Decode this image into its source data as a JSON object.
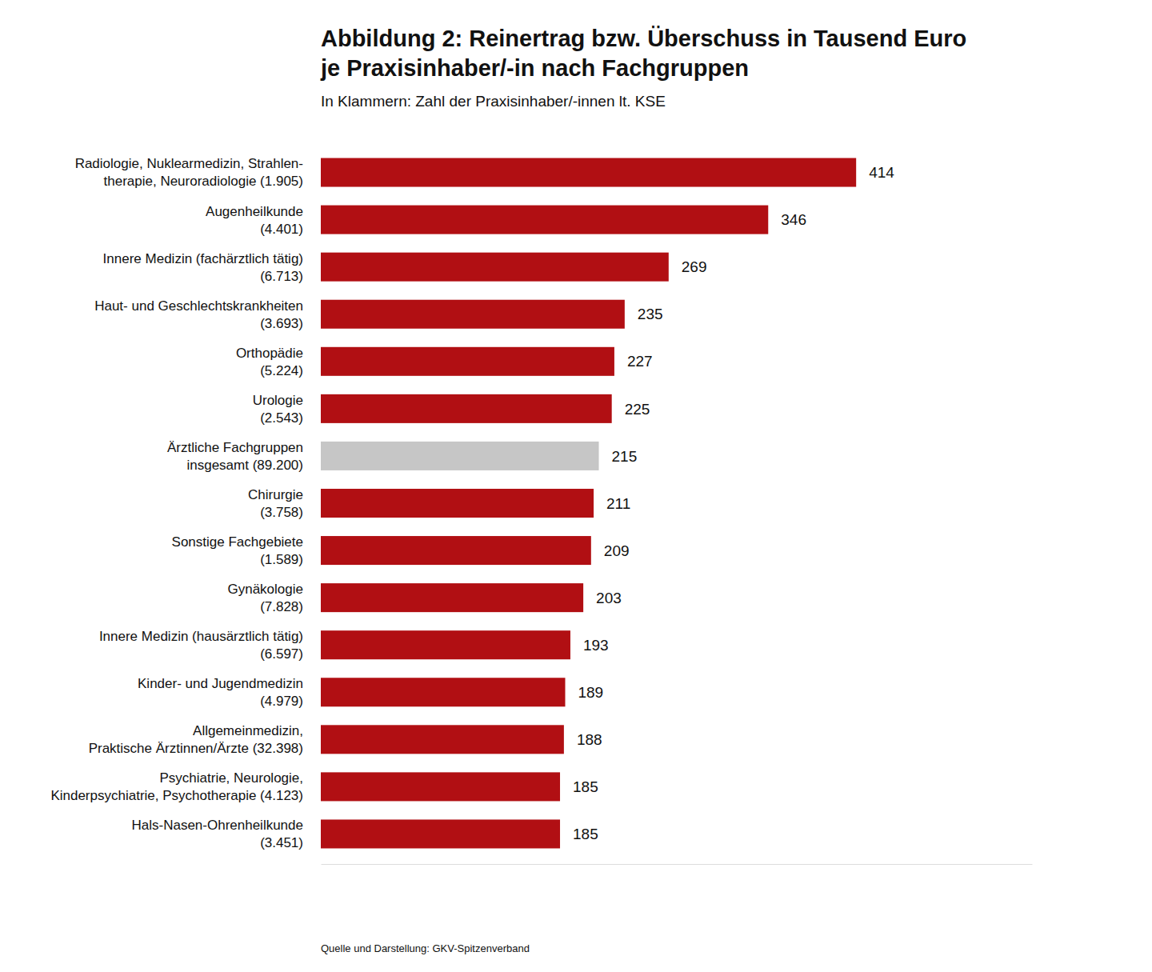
{
  "chart_data": {
    "type": "bar",
    "orientation": "horizontal",
    "title": "Abbildung 2: Reinertrag bzw. Überschuss in Tausend Euro\nje Praxisinhaber/-in nach Fachgruppen",
    "subtitle": "In Klammern: Zahl der Praxisinhaber/-innen lt. KSE",
    "source": "Quelle und Darstellung: GKV-Spitzenverband",
    "categories": [
      "Radiologie, Nuklearmedizin, Strahlen-\ntherapie, Neuroradiologie (1.905)",
      "Augenheilkunde\n(4.401)",
      "Innere Medizin (fachärztlich tätig)\n(6.713)",
      "Haut- und Geschlechtskrankheiten\n(3.693)",
      "Orthopädie\n(5.224)",
      "Urologie\n(2.543)",
      "Ärztliche Fachgruppen\ninsgesamt (89.200)",
      "Chirurgie\n(3.758)",
      "Sonstige Fachgebiete\n(1.589)",
      "Gynäkologie\n(7.828)",
      "Innere Medizin (hausärztlich tätig)\n(6.597)",
      "Kinder- und Jugendmedizin\n(4.979)",
      "Allgemeinmedizin,\nPraktische Ärztinnen/Ärzte (32.398)",
      "Psychiatrie, Neurologie,\nKinderpsychiatrie, Psychotherapie (4.123)",
      "Hals-Nasen-Ohrenheilkunde\n(3.451)"
    ],
    "values": [
      414,
      346,
      269,
      235,
      227,
      225,
      215,
      211,
      209,
      203,
      193,
      189,
      188,
      185,
      185
    ],
    "colors": [
      "#b10f13",
      "#b10f13",
      "#b10f13",
      "#b10f13",
      "#b10f13",
      "#b10f13",
      "#c6c6c6",
      "#b10f13",
      "#b10f13",
      "#b10f13",
      "#b10f13",
      "#b10f13",
      "#b10f13",
      "#b10f13",
      "#b10f13"
    ],
    "xlim": [
      0,
      550
    ],
    "grid": false,
    "data_labels": true,
    "tick_labels": "y"
  }
}
